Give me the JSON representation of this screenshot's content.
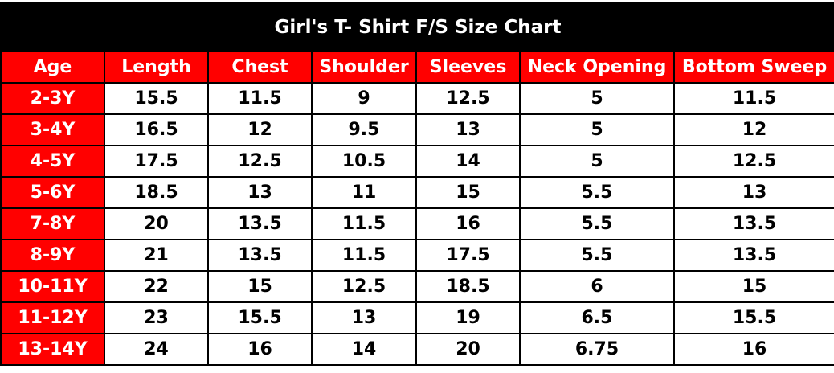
{
  "title": "Girl's T- Shirt F/S Size Chart",
  "colors": {
    "header_bg": "#ff0000",
    "title_bg": "#000000",
    "header_text": "#ffffff"
  },
  "headers": [
    "Age",
    "Length",
    "Chest",
    "Shoulder",
    "Sleeves",
    "Neck Opening",
    "Bottom Sweep"
  ],
  "rows": [
    [
      "2-3Y",
      "15.5",
      "11.5",
      "9",
      "12.5",
      "5",
      "11.5"
    ],
    [
      "3-4Y",
      "16.5",
      "12",
      "9.5",
      "13",
      "5",
      "12"
    ],
    [
      "4-5Y",
      "17.5",
      "12.5",
      "10.5",
      "14",
      "5",
      "12.5"
    ],
    [
      "5-6Y",
      "18.5",
      "13",
      "11",
      "15",
      "5.5",
      "13"
    ],
    [
      "7-8Y",
      "20",
      "13.5",
      "11.5",
      "16",
      "5.5",
      "13.5"
    ],
    [
      "8-9Y",
      "21",
      "13.5",
      "11.5",
      "17.5",
      "5.5",
      "13.5"
    ],
    [
      "10-11Y",
      "22",
      "15",
      "12.5",
      "18.5",
      "6",
      "15"
    ],
    [
      "11-12Y",
      "23",
      "15.5",
      "13",
      "19",
      "6.5",
      "15.5"
    ],
    [
      "13-14Y",
      "24",
      "16",
      "14",
      "20",
      "6.75",
      "16"
    ]
  ]
}
